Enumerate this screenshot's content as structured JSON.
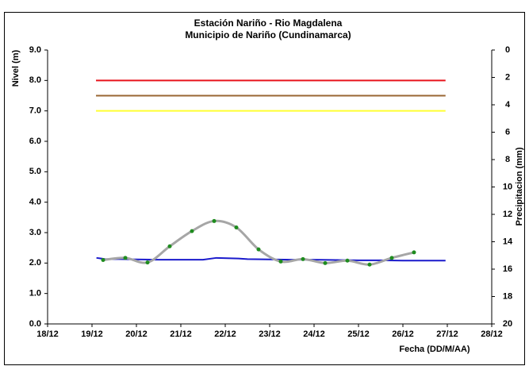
{
  "chart_data": {
    "type": "line",
    "title": "Estación Nariño  - Rio Magdalena",
    "subtitle": "Municipio de Nariño (Cundinamarca)",
    "y_label": "Nivel (m)",
    "y2_label": "Precipitacion (mm)",
    "x_label": "Fecha (DD/M/AA)",
    "xlim": [
      18,
      28
    ],
    "xticks": [
      {
        "value": 18,
        "label": "18/12"
      },
      {
        "value": 19,
        "label": "19/12"
      },
      {
        "value": 20,
        "label": "20/12"
      },
      {
        "value": 21,
        "label": "21/12"
      },
      {
        "value": 22,
        "label": "22/12"
      },
      {
        "value": 23,
        "label": "23/12"
      },
      {
        "value": 24,
        "label": "24/12"
      },
      {
        "value": 25,
        "label": "25/12"
      },
      {
        "value": 26,
        "label": "26/12"
      },
      {
        "value": 27,
        "label": "27/12"
      },
      {
        "value": 28,
        "label": "28/12"
      }
    ],
    "ylim": [
      0,
      9
    ],
    "yticks": [
      {
        "value": 0,
        "label": "0.0"
      },
      {
        "value": 1,
        "label": "1.0"
      },
      {
        "value": 2,
        "label": "2.0"
      },
      {
        "value": 3,
        "label": "3.0"
      },
      {
        "value": 4,
        "label": "4.0"
      },
      {
        "value": 5,
        "label": "5.0"
      },
      {
        "value": 6,
        "label": "6.0"
      },
      {
        "value": 7,
        "label": "7.0"
      },
      {
        "value": 8,
        "label": "8.0"
      },
      {
        "value": 9,
        "label": "9.0"
      }
    ],
    "y2lim": [
      0,
      20
    ],
    "y2_inverted": true,
    "y2ticks": [
      0,
      2,
      4,
      6,
      8,
      10,
      12,
      14,
      16,
      18,
      20
    ],
    "series": [
      {
        "color": "#e8141c",
        "line_width": 2,
        "x": [
          19.09,
          26.96
        ],
        "values": [
          8,
          8
        ]
      },
      {
        "color": "#996633",
        "line_width": 2,
        "x": [
          19.09,
          26.96
        ],
        "values": [
          7.5,
          7.5
        ]
      },
      {
        "color": "#ffff33",
        "line_width": 2,
        "x": [
          19.09,
          26.96
        ],
        "values": [
          7,
          7
        ]
      },
      {
        "color": "#1a1acc",
        "line_width": 2,
        "x": [
          19.1,
          19.3,
          19.6,
          20.0,
          20.5,
          21.0,
          21.5,
          21.8,
          22.3,
          22.5,
          23.0,
          23.5,
          24.0,
          24.5,
          25.0,
          25.5,
          26.0,
          26.5,
          26.96
        ],
        "values": [
          2.17,
          2.13,
          2.13,
          2.12,
          2.11,
          2.11,
          2.11,
          2.17,
          2.15,
          2.13,
          2.12,
          2.11,
          2.11,
          2.1,
          2.09,
          2.09,
          2.08,
          2.08,
          2.08
        ]
      },
      {
        "color": "#a6a6a6",
        "line_width": 3,
        "smooth": true,
        "marker_color": "#1e8c1e",
        "x": [
          19.25,
          19.75,
          20.25,
          20.75,
          21.25,
          21.75,
          22.25,
          22.75,
          23.25,
          23.75,
          24.25,
          24.75,
          25.25,
          25.75,
          26.25
        ],
        "values": [
          2.1,
          2.17,
          2.02,
          2.55,
          3.05,
          3.38,
          3.17,
          2.45,
          2.05,
          2.13,
          2.0,
          2.08,
          1.95,
          2.17,
          2.35
        ]
      }
    ]
  }
}
